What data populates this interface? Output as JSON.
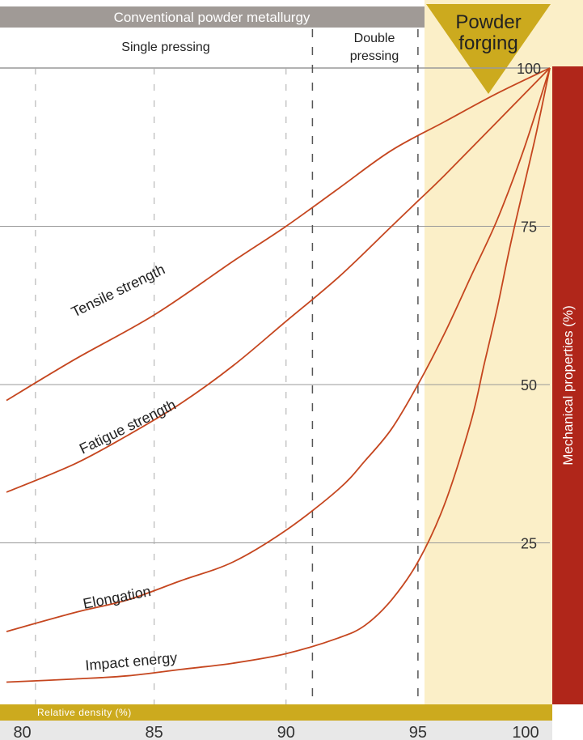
{
  "colors": {
    "header_gray": "#a09a96",
    "forging_band": "#fbefc8",
    "forging_triangle": "#ccaa1e",
    "right_bar": "#b0261a",
    "bottom_bar": "#ccaa1e",
    "curve": "#c5461f",
    "gridline": "#999999",
    "axis_strip": "#e8e8e8"
  },
  "header": {
    "conventional": "Conventional powder metallurgy",
    "single_pressing": "Single pressing",
    "double_pressing_line1": "Double",
    "double_pressing_line2": "pressing",
    "forging_line1": "Powder",
    "forging_line2": "forging"
  },
  "chart_data": {
    "type": "line",
    "xlabel": "Relative density (%)",
    "ylabel": "Mechanical properties (%)",
    "xlim": [
      79.4,
      100
    ],
    "ylim": [
      0,
      100
    ],
    "x_ticks": [
      80,
      85,
      90,
      95,
      100
    ],
    "y_ticks": [
      25,
      50,
      75,
      100
    ],
    "regions": [
      {
        "label": "Single pressing",
        "x_range": [
          79.4,
          90.6
        ]
      },
      {
        "label": "Double pressing",
        "x_range": [
          90.6,
          95
        ]
      },
      {
        "label": "Powder forging",
        "x_range": [
          95,
          100
        ]
      }
    ],
    "series": [
      {
        "name": "Tensile strength",
        "x": [
          79.4,
          82,
          85,
          88,
          90,
          92,
          94,
          96,
          98,
          100
        ],
        "y": [
          47.5,
          54,
          61,
          69.5,
          75,
          81,
          87,
          91.5,
          96,
          100
        ]
      },
      {
        "name": "Fatigue strength",
        "x": [
          79.4,
          82,
          84,
          86,
          88,
          90,
          92,
          94,
          95,
          96,
          98,
          100
        ],
        "y": [
          33,
          37.5,
          42,
          47,
          53,
          60,
          67,
          75,
          79,
          83,
          91.5,
          100
        ]
      },
      {
        "name": "Elongation",
        "x": [
          79.4,
          82,
          84,
          86,
          88,
          90,
          92,
          93,
          94,
          95,
          96,
          97,
          98,
          99,
          100
        ],
        "y": [
          11,
          14,
          16,
          19,
          22,
          27,
          33.5,
          38,
          43,
          50,
          58,
          67,
          76,
          87,
          100
        ]
      },
      {
        "name": "Impact energy",
        "x": [
          79.4,
          82,
          84,
          86,
          88,
          90,
          92,
          93,
          94,
          95,
          96,
          97,
          97.5,
          98,
          98.5,
          99,
          99.5,
          100
        ],
        "y": [
          3,
          3.5,
          4,
          5,
          6,
          7.5,
          10,
          12,
          16,
          22,
          31,
          44,
          53,
          62,
          72,
          81,
          90,
          100
        ]
      }
    ]
  }
}
